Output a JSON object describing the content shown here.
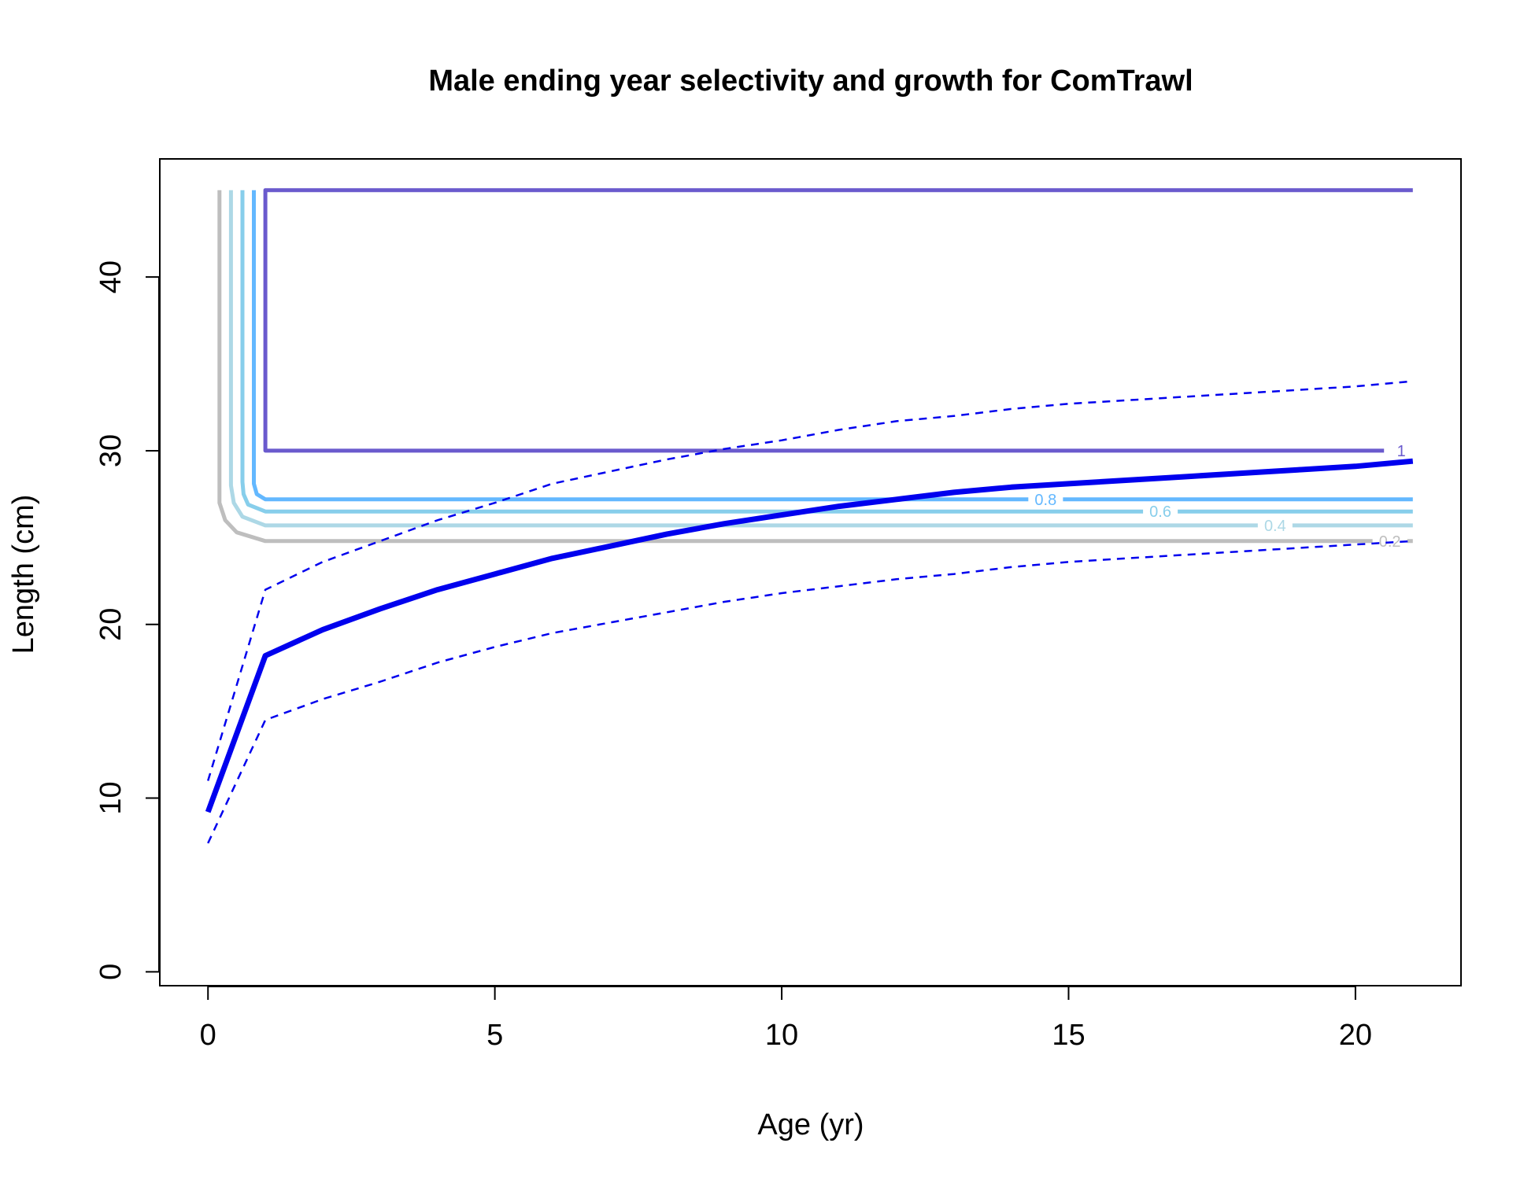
{
  "chart_data": {
    "type": "line",
    "title": "Male ending year selectivity and growth for ComTrawl",
    "xlabel": "Age (yr)",
    "ylabel": "Length (cm)",
    "xlim": [
      -0.84,
      21.84
    ],
    "ylim": [
      -0.8,
      46.8
    ],
    "xticks": [
      0,
      5,
      10,
      15,
      20
    ],
    "yticks": [
      0,
      10,
      20,
      30,
      40
    ],
    "grid": false,
    "legend": "none",
    "series": [
      {
        "role": "growth-mean",
        "color": "#0000ee",
        "style": "solid",
        "points": [
          [
            0,
            9.2
          ],
          [
            1,
            18.2
          ],
          [
            2,
            19.7
          ],
          [
            3,
            20.9
          ],
          [
            4,
            22.0
          ],
          [
            5,
            22.9
          ],
          [
            6,
            23.8
          ],
          [
            7,
            24.5
          ],
          [
            8,
            25.2
          ],
          [
            9,
            25.8
          ],
          [
            10,
            26.3
          ],
          [
            11,
            26.8
          ],
          [
            12,
            27.2
          ],
          [
            13,
            27.6
          ],
          [
            14,
            27.9
          ],
          [
            15,
            28.1
          ],
          [
            16,
            28.3
          ],
          [
            17,
            28.5
          ],
          [
            18,
            28.7
          ],
          [
            19,
            28.9
          ],
          [
            20,
            29.1
          ],
          [
            21,
            29.4
          ]
        ]
      },
      {
        "role": "growth-upper",
        "color": "#0000ee",
        "style": "dashed",
        "points": [
          [
            0,
            11.0
          ],
          [
            1,
            22.0
          ],
          [
            2,
            23.6
          ],
          [
            3,
            24.8
          ],
          [
            4,
            26.0
          ],
          [
            5,
            27.0
          ],
          [
            6,
            28.1
          ],
          [
            7,
            28.8
          ],
          [
            8,
            29.5
          ],
          [
            9,
            30.1
          ],
          [
            10,
            30.6
          ],
          [
            11,
            31.2
          ],
          [
            12,
            31.7
          ],
          [
            13,
            32.0
          ],
          [
            14,
            32.4
          ],
          [
            15,
            32.7
          ],
          [
            16,
            32.9
          ],
          [
            17,
            33.1
          ],
          [
            18,
            33.3
          ],
          [
            19,
            33.5
          ],
          [
            20,
            33.7
          ],
          [
            21,
            34.0
          ]
        ]
      },
      {
        "role": "growth-lower",
        "color": "#0000ee",
        "style": "dashed",
        "points": [
          [
            0,
            7.4
          ],
          [
            1,
            14.5
          ],
          [
            2,
            15.7
          ],
          [
            3,
            16.7
          ],
          [
            4,
            17.8
          ],
          [
            5,
            18.7
          ],
          [
            6,
            19.5
          ],
          [
            7,
            20.1
          ],
          [
            8,
            20.7
          ],
          [
            9,
            21.3
          ],
          [
            10,
            21.8
          ],
          [
            11,
            22.2
          ],
          [
            12,
            22.6
          ],
          [
            13,
            22.9
          ],
          [
            14,
            23.3
          ],
          [
            15,
            23.6
          ],
          [
            16,
            23.8
          ],
          [
            17,
            24.0
          ],
          [
            18,
            24.2
          ],
          [
            19,
            24.4
          ],
          [
            20,
            24.6
          ],
          [
            21,
            24.8
          ]
        ]
      }
    ],
    "contours": [
      {
        "level": "0.2",
        "color": "#bebebe",
        "label_x": 20.6,
        "label_y": 24.8,
        "points": [
          [
            21,
            24.8
          ],
          [
            1,
            24.8
          ],
          [
            0.5,
            25.3
          ],
          [
            0.3,
            26.0
          ],
          [
            0.2,
            27.0
          ],
          [
            0.2,
            28.0
          ],
          [
            0.2,
            45
          ]
        ]
      },
      {
        "level": "0.4",
        "color": "#add8e6",
        "label_x": 18.6,
        "label_y": 25.7,
        "points": [
          [
            21,
            25.7
          ],
          [
            1,
            25.7
          ],
          [
            0.6,
            26.2
          ],
          [
            0.45,
            27.0
          ],
          [
            0.4,
            28.0
          ],
          [
            0.4,
            45
          ]
        ]
      },
      {
        "level": "0.6",
        "color": "#87ceeb",
        "label_x": 16.6,
        "label_y": 26.5,
        "points": [
          [
            21,
            26.5
          ],
          [
            1,
            26.5
          ],
          [
            0.7,
            26.9
          ],
          [
            0.62,
            27.5
          ],
          [
            0.6,
            28.2
          ],
          [
            0.6,
            45
          ]
        ]
      },
      {
        "level": "0.8",
        "color": "#63b8ff",
        "label_x": 14.6,
        "label_y": 27.2,
        "points": [
          [
            21,
            27.2
          ],
          [
            1,
            27.2
          ],
          [
            0.85,
            27.5
          ],
          [
            0.8,
            28.1
          ],
          [
            0.8,
            29.0
          ],
          [
            0.8,
            45
          ]
        ]
      },
      {
        "level": "1",
        "color": "#6a5acd",
        "label_x": 20.8,
        "label_y": 30.0,
        "points": [
          [
            20.6,
            30
          ],
          [
            1,
            30
          ],
          [
            1,
            45
          ],
          [
            21,
            45
          ]
        ]
      }
    ]
  }
}
